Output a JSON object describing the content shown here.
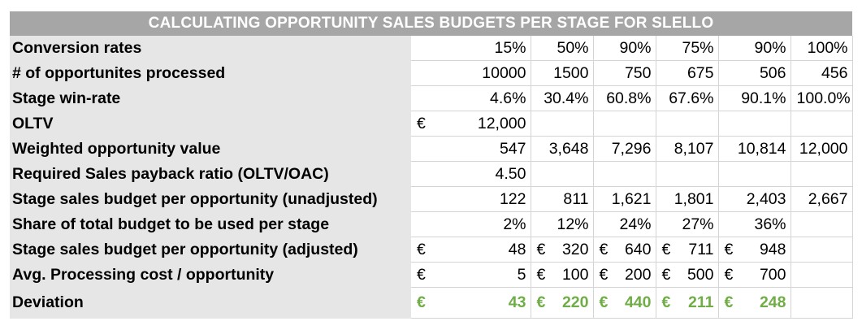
{
  "title": "CALCULATING OPPORTUNITY SALES BUDGETS PER STAGE FOR SLELLO",
  "colors": {
    "header_bg": "#a6a6a6",
    "label_bg": "#e6e6e6",
    "positive": "#70ad47"
  },
  "rows": [
    {
      "label": "Conversion rates",
      "cells": [
        [
          "",
          "15%"
        ],
        [
          "",
          "50%"
        ],
        [
          "",
          "90%"
        ],
        [
          "",
          "75%"
        ],
        [
          "",
          "90%"
        ],
        [
          "",
          "100%"
        ]
      ]
    },
    {
      "label": "# of opportunites processed",
      "cells": [
        [
          "",
          "10000"
        ],
        [
          "",
          "1500"
        ],
        [
          "",
          "750"
        ],
        [
          "",
          "675"
        ],
        [
          "",
          "506"
        ],
        [
          "",
          "456"
        ]
      ]
    },
    {
      "label": "Stage win-rate",
      "cells": [
        [
          "",
          "4.6%"
        ],
        [
          "",
          "30.4%"
        ],
        [
          "",
          "60.8%"
        ],
        [
          "",
          "67.6%"
        ],
        [
          "",
          "90.1%"
        ],
        [
          "",
          "100.0%"
        ]
      ]
    },
    {
      "label": "OLTV",
      "cells": [
        [
          "€",
          "12,000"
        ],
        [
          "",
          ""
        ],
        [
          "",
          ""
        ],
        [
          "",
          ""
        ],
        [
          "",
          ""
        ],
        [
          "",
          ""
        ]
      ]
    },
    {
      "label": "Weighted opportunity value",
      "cells": [
        [
          "",
          "547"
        ],
        [
          "",
          "3,648"
        ],
        [
          "",
          "7,296"
        ],
        [
          "",
          "8,107"
        ],
        [
          "",
          "10,814"
        ],
        [
          "",
          "12,000"
        ]
      ]
    },
    {
      "label": "Required Sales payback ratio (OLTV/OAC)",
      "cells": [
        [
          "",
          "4.50"
        ],
        [
          "",
          ""
        ],
        [
          "",
          ""
        ],
        [
          "",
          ""
        ],
        [
          "",
          ""
        ],
        [
          "",
          ""
        ]
      ]
    },
    {
      "label": "Stage sales budget per opportunity (unadjusted)",
      "cells": [
        [
          "",
          "122"
        ],
        [
          "",
          "811"
        ],
        [
          "",
          "1,621"
        ],
        [
          "",
          "1,801"
        ],
        [
          "",
          "2,403"
        ],
        [
          "",
          "2,667"
        ]
      ]
    },
    {
      "label": "Share of total budget to be used per stage",
      "cells": [
        [
          "",
          "2%"
        ],
        [
          "",
          "12%"
        ],
        [
          "",
          "24%"
        ],
        [
          "",
          "27%"
        ],
        [
          "",
          "36%"
        ],
        [
          "",
          ""
        ]
      ]
    },
    {
      "label": "Stage sales budget per opportunity (adjusted)",
      "cells": [
        [
          "€",
          "48"
        ],
        [
          "€",
          "320"
        ],
        [
          "€",
          "640"
        ],
        [
          "€",
          "711"
        ],
        [
          "€",
          "948"
        ],
        [
          "",
          ""
        ]
      ]
    },
    {
      "label": "Avg. Processing cost / opportunity",
      "cells": [
        [
          "€",
          "5"
        ],
        [
          "€",
          "100"
        ],
        [
          "€",
          "200"
        ],
        [
          "€",
          "500"
        ],
        [
          "€",
          "700"
        ],
        [
          "",
          ""
        ]
      ]
    },
    {
      "label": "Deviation",
      "cells": [
        [
          "€",
          "43"
        ],
        [
          "€",
          "220"
        ],
        [
          "€",
          "440"
        ],
        [
          "€",
          "211"
        ],
        [
          "€",
          "248"
        ],
        [
          "",
          ""
        ]
      ]
    }
  ]
}
